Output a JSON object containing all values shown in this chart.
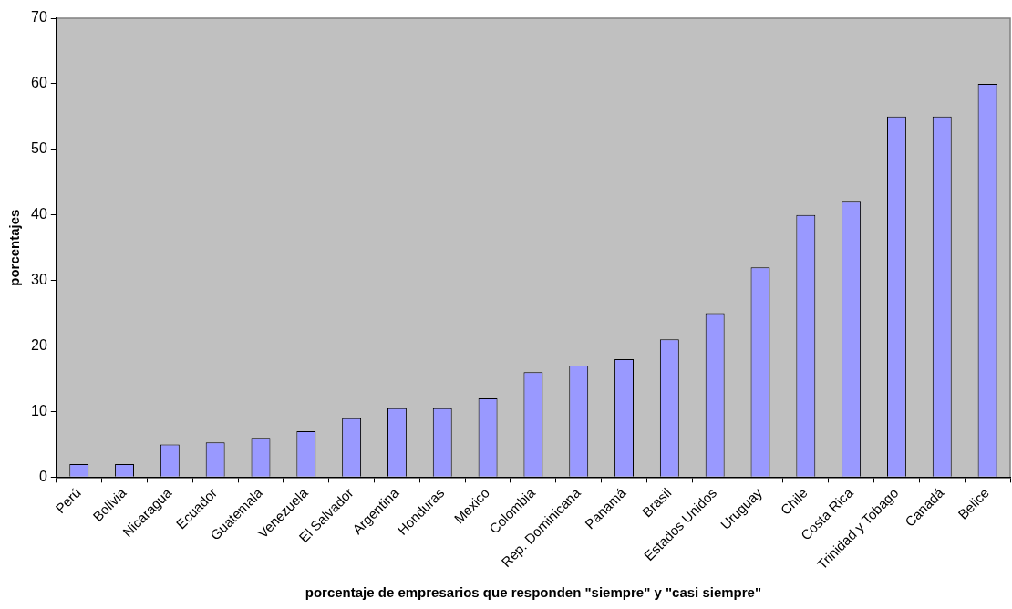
{
  "chart_data": {
    "type": "bar",
    "xlabel": "porcentaje de empresarios que responden \"siempre\" y \"casi siempre\"",
    "ylabel": "porcentajes",
    "categories": [
      "Perú",
      "Bolivia",
      "Nicaragua",
      "Ecuador",
      "Guatemala",
      "Venezuela",
      "El Salvador",
      "Argentina",
      "Honduras",
      "Mexico",
      "Colombia",
      "Rep. Dominicana",
      "Panamá",
      "Brasil",
      "Estados Unidos",
      "Uruguay",
      "Chile",
      "Costa Rica",
      "Trinidad y Tobago",
      "Canadá",
      "Belice"
    ],
    "values": [
      2,
      2,
      5,
      5.3,
      6,
      7,
      9,
      10.5,
      10.5,
      12,
      16,
      17,
      18,
      21,
      25,
      32,
      40,
      42,
      55,
      55,
      60
    ],
    "color": "#9999ff",
    "ylim": [
      0,
      70
    ],
    "yticks": [
      0,
      10,
      20,
      30,
      40,
      50,
      60,
      70
    ],
    "grid": false,
    "legend": false
  }
}
